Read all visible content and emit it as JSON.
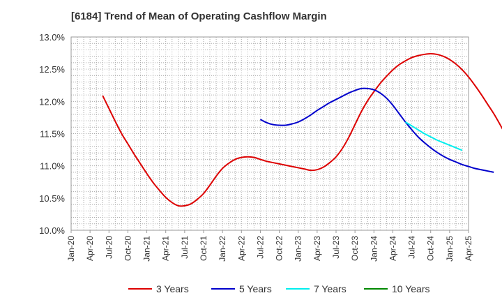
{
  "chart_data": {
    "type": "line",
    "title": "[6184]  Trend of Mean of Operating Cashflow Margin",
    "xlabel": "",
    "ylabel": "",
    "x_ticks": [
      "Jan-20",
      "Apr-20",
      "Jul-20",
      "Oct-20",
      "Jan-21",
      "Apr-21",
      "Jul-21",
      "Oct-21",
      "Jan-22",
      "Apr-22",
      "Jul-22",
      "Oct-22",
      "Jan-23",
      "Apr-23",
      "Jul-23",
      "Oct-23",
      "Jan-24",
      "Apr-24",
      "Jul-24",
      "Oct-24",
      "Jan-25",
      "Apr-25"
    ],
    "y_ticks": [
      "10.0%",
      "10.5%",
      "11.0%",
      "11.5%",
      "12.0%",
      "12.5%",
      "13.0%"
    ],
    "ylim": [
      10.0,
      13.0
    ],
    "y_unit": "%",
    "grid": true,
    "legend_position": "bottom",
    "series": [
      {
        "name": "3 Years",
        "color": "#dd0000",
        "points": [
          [
            "Jun-20",
            12.09
          ],
          [
            "Jul-20",
            11.89
          ],
          [
            "Aug-20",
            11.69
          ],
          [
            "Sep-20",
            11.5
          ],
          [
            "Oct-20",
            11.34
          ],
          [
            "Nov-20",
            11.18
          ],
          [
            "Dec-20",
            11.03
          ],
          [
            "Jan-21",
            10.88
          ],
          [
            "Feb-21",
            10.74
          ],
          [
            "Mar-21",
            10.62
          ],
          [
            "Apr-21",
            10.51
          ],
          [
            "May-21",
            10.43
          ],
          [
            "Jun-21",
            10.38
          ],
          [
            "Jul-21",
            10.38
          ],
          [
            "Aug-21",
            10.41
          ],
          [
            "Sep-21",
            10.48
          ],
          [
            "Oct-21",
            10.57
          ],
          [
            "Nov-21",
            10.7
          ],
          [
            "Dec-21",
            10.84
          ],
          [
            "Jan-22",
            10.96
          ],
          [
            "Feb-22",
            11.04
          ],
          [
            "Mar-22",
            11.1
          ],
          [
            "Apr-22",
            11.13
          ],
          [
            "May-22",
            11.14
          ],
          [
            "Jun-22",
            11.13
          ],
          [
            "Jul-22",
            11.1
          ],
          [
            "Aug-22",
            11.07
          ],
          [
            "Sep-22",
            11.05
          ],
          [
            "Oct-22",
            11.03
          ],
          [
            "Nov-22",
            11.01
          ],
          [
            "Dec-22",
            10.99
          ],
          [
            "Jan-23",
            10.97
          ],
          [
            "Feb-23",
            10.95
          ],
          [
            "Mar-23",
            10.93
          ],
          [
            "Apr-23",
            10.94
          ],
          [
            "May-23",
            10.98
          ],
          [
            "Jun-23",
            11.05
          ],
          [
            "Jul-23",
            11.14
          ],
          [
            "Aug-23",
            11.27
          ],
          [
            "Sep-23",
            11.44
          ],
          [
            "Oct-23",
            11.64
          ],
          [
            "Nov-23",
            11.84
          ],
          [
            "Dec-23",
            12.01
          ],
          [
            "Jan-24",
            12.15
          ],
          [
            "Feb-24",
            12.28
          ],
          [
            "Mar-24",
            12.39
          ],
          [
            "Apr-24",
            12.49
          ],
          [
            "May-24",
            12.57
          ],
          [
            "Jun-24",
            12.63
          ],
          [
            "Jul-24",
            12.68
          ],
          [
            "Aug-24",
            12.71
          ],
          [
            "Sep-24",
            12.73
          ],
          [
            "Oct-24",
            12.74
          ],
          [
            "Nov-24",
            12.73
          ],
          [
            "Dec-24",
            12.7
          ],
          [
            "Jan-25",
            12.65
          ],
          [
            "Feb-25",
            12.58
          ],
          [
            "Mar-25",
            12.49
          ],
          [
            "Apr-25",
            12.38
          ],
          [
            "May-25",
            12.25
          ],
          [
            "Jun-25",
            12.11
          ],
          [
            "Jul-25",
            11.96
          ],
          [
            "Aug-25",
            11.81
          ],
          [
            "Sep-25",
            11.64
          ],
          [
            "Oct-25",
            11.46
          ]
        ]
      },
      {
        "name": "5 Years",
        "color": "#0000cc",
        "points": [
          [
            "Jul-22",
            11.72
          ],
          [
            "Aug-22",
            11.67
          ],
          [
            "Sep-22",
            11.64
          ],
          [
            "Oct-22",
            11.63
          ],
          [
            "Nov-22",
            11.63
          ],
          [
            "Dec-22",
            11.65
          ],
          [
            "Jan-23",
            11.68
          ],
          [
            "Feb-23",
            11.73
          ],
          [
            "Mar-23",
            11.79
          ],
          [
            "Apr-23",
            11.86
          ],
          [
            "May-23",
            11.92
          ],
          [
            "Jun-23",
            11.98
          ],
          [
            "Jul-23",
            12.03
          ],
          [
            "Aug-23",
            12.08
          ],
          [
            "Sep-23",
            12.13
          ],
          [
            "Oct-23",
            12.17
          ],
          [
            "Nov-23",
            12.2
          ],
          [
            "Dec-23",
            12.2
          ],
          [
            "Jan-24",
            12.18
          ],
          [
            "Feb-24",
            12.13
          ],
          [
            "Mar-24",
            12.05
          ],
          [
            "Apr-24",
            11.94
          ],
          [
            "May-24",
            11.81
          ],
          [
            "Jun-24",
            11.68
          ],
          [
            "Jul-24",
            11.56
          ],
          [
            "Aug-24",
            11.45
          ],
          [
            "Sep-24",
            11.36
          ],
          [
            "Oct-24",
            11.28
          ],
          [
            "Nov-24",
            11.21
          ],
          [
            "Dec-24",
            11.15
          ],
          [
            "Jan-25",
            11.1
          ],
          [
            "Feb-25",
            11.06
          ],
          [
            "Mar-25",
            11.02
          ],
          [
            "Apr-25",
            10.99
          ],
          [
            "May-25",
            10.96
          ],
          [
            "Jun-25",
            10.94
          ],
          [
            "Jul-25",
            10.92
          ],
          [
            "Aug-25",
            10.9
          ]
        ]
      },
      {
        "name": "7 Years",
        "color": "#00eeee",
        "points": [
          [
            "Jun-24",
            11.68
          ],
          [
            "Jul-24",
            11.62
          ],
          [
            "Aug-24",
            11.56
          ],
          [
            "Sep-24",
            11.5
          ],
          [
            "Oct-24",
            11.45
          ],
          [
            "Nov-24",
            11.4
          ],
          [
            "Dec-24",
            11.36
          ],
          [
            "Jan-25",
            11.32
          ],
          [
            "Feb-25",
            11.28
          ],
          [
            "Mar-25",
            11.24
          ]
        ]
      },
      {
        "name": "10 Years",
        "color": "#008800",
        "points": []
      }
    ]
  }
}
